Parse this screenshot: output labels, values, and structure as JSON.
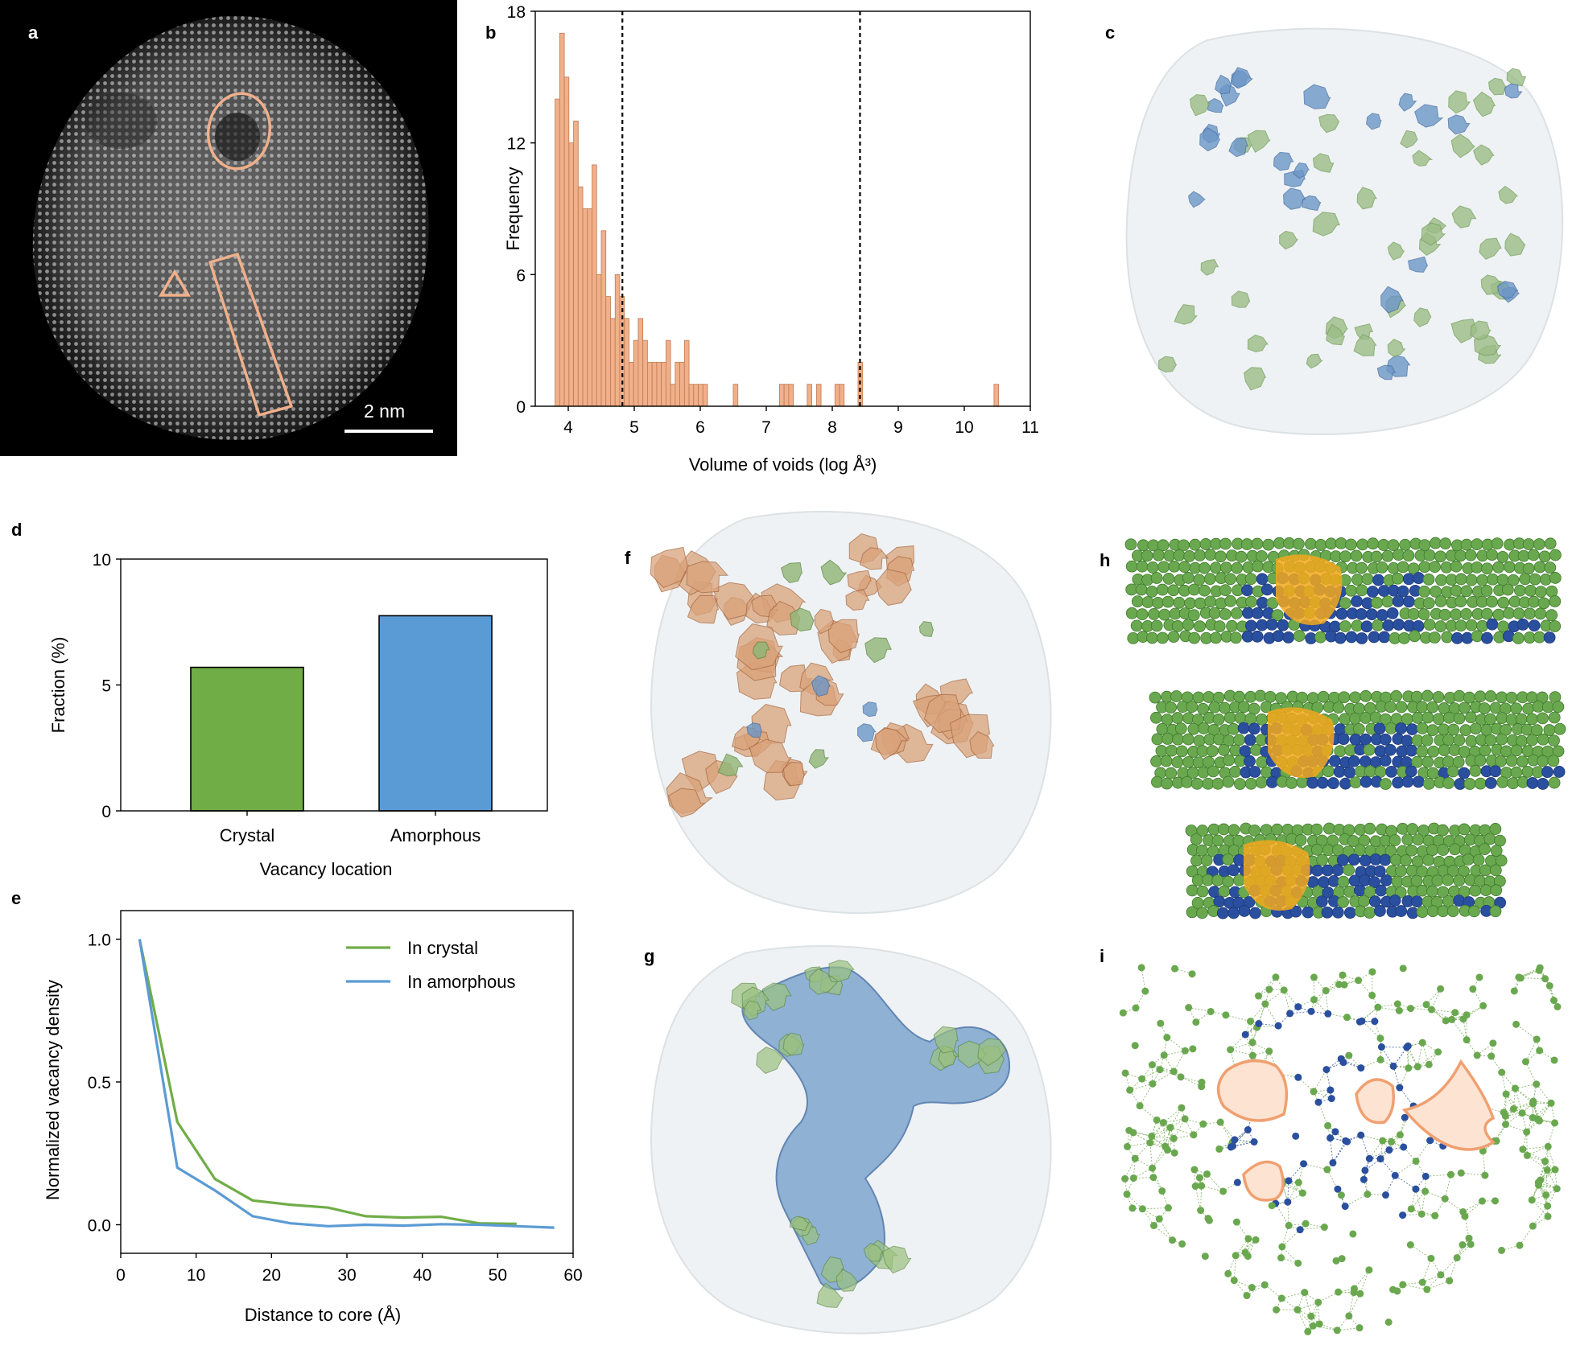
{
  "panels": {
    "a": {
      "letter": "a",
      "scale_bar": "2 nm"
    },
    "b": {
      "letter": "b"
    },
    "c": {
      "letter": "c"
    },
    "d": {
      "letter": "d"
    },
    "e": {
      "letter": "e"
    },
    "f": {
      "letter": "f"
    },
    "g": {
      "letter": "g"
    },
    "h": {
      "letter": "h"
    },
    "i": {
      "letter": "i"
    }
  },
  "colors": {
    "orange": "#f0b08a",
    "orange_edge": "#c07a52",
    "green": "#70ad47",
    "blue": "#5b9bd5",
    "dark_blue": "#2a4f9e",
    "gold": "#f2a81d"
  },
  "chart_data": [
    {
      "id": "b",
      "type": "bar",
      "xlabel": "Volume of voids (log Å³)",
      "ylabel": "Frequency",
      "xlim": [
        3.5,
        11
      ],
      "ylim": [
        0,
        18
      ],
      "xticks": [
        "4",
        "5",
        "6",
        "7",
        "8",
        "9",
        "10",
        "11"
      ],
      "yticks": [
        "0",
        "6",
        "12",
        "18"
      ],
      "bin_width": 0.07,
      "bin_starts": [
        3.8,
        3.87,
        3.94,
        4.01,
        4.08,
        4.15,
        4.22,
        4.29,
        4.36,
        4.43,
        4.5,
        4.57,
        4.64,
        4.71,
        4.78,
        4.85,
        4.92,
        4.99,
        5.06,
        5.13,
        5.2,
        5.27,
        5.34,
        5.41,
        5.48,
        5.55,
        5.62,
        5.69,
        5.76,
        5.83,
        5.9,
        5.97,
        6.04,
        6.5,
        7.2,
        7.27,
        7.34,
        7.62,
        7.76,
        8.04,
        8.11,
        8.39,
        10.45
      ],
      "values": [
        14,
        17,
        15,
        12,
        13,
        10,
        9,
        9,
        11,
        6,
        8,
        5,
        4,
        6,
        5,
        4,
        2,
        3,
        4,
        3,
        2,
        2,
        2,
        2,
        3,
        1,
        2,
        2,
        3,
        1,
        1,
        1,
        1,
        1,
        1,
        1,
        1,
        1,
        1,
        1,
        1,
        2,
        1
      ],
      "vlines": [
        4.82,
        8.42
      ]
    },
    {
      "id": "d",
      "type": "bar",
      "categories": [
        "Crystal",
        "Amorphous"
      ],
      "values": [
        5.7,
        7.75
      ],
      "xlabel": "Vacancy location",
      "ylabel": "Fraction (%)",
      "ylim": [
        0,
        10
      ],
      "yticks": [
        "0",
        "5",
        "10"
      ]
    },
    {
      "id": "e",
      "type": "line",
      "xlabel": "Distance to core (Å)",
      "ylabel": "Normalized vacancy density",
      "xlim": [
        0,
        60
      ],
      "ylim": [
        -0.1,
        1.1
      ],
      "xticks": [
        "0",
        "10",
        "20",
        "30",
        "40",
        "50",
        "60"
      ],
      "yticks": [
        "0.0",
        "0.5",
        "1.0"
      ],
      "legend_position": "top-right",
      "series": [
        {
          "name": "In crystal",
          "color": "#70ad47",
          "x": [
            2.5,
            7.5,
            12.5,
            17.5,
            22.5,
            27.5,
            32.5,
            37.5,
            42.5,
            47.5,
            52.5
          ],
          "y": [
            1.0,
            0.36,
            0.16,
            0.085,
            0.07,
            0.06,
            0.03,
            0.025,
            0.028,
            0.005,
            0.003
          ]
        },
        {
          "name": "In amorphous",
          "color": "#5b9bd5",
          "x": [
            2.5,
            7.5,
            12.5,
            17.5,
            22.5,
            27.5,
            32.5,
            37.5,
            42.5,
            47.5,
            52.5,
            57.5
          ],
          "y": [
            1.0,
            0.2,
            0.12,
            0.03,
            0.005,
            -0.005,
            0.0,
            -0.003,
            0.002,
            0.0,
            -0.005,
            -0.01
          ]
        }
      ]
    }
  ]
}
